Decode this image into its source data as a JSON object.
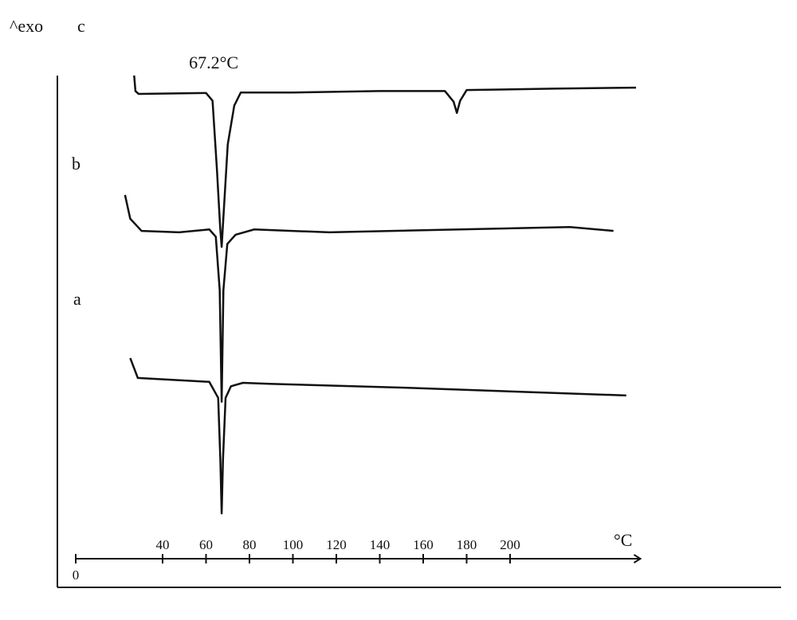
{
  "chart_data": {
    "type": "line",
    "title": "^exo",
    "annotation": "67.2°C",
    "annotation_x": 67.2,
    "x_label": "°C",
    "xlim": [
      0,
      260
    ],
    "ylim": [
      0,
      100
    ],
    "xticks": [
      0,
      40,
      60,
      80,
      100,
      120,
      140,
      160,
      180,
      200
    ],
    "grid": false,
    "series": [
      {
        "name": "a",
        "color": "#111111",
        "x": [
          25.1,
          28.6,
          61.5,
          65.6,
          66.6,
          67.2,
          67.8,
          69.0,
          71.5,
          77.0,
          89.1,
          151.4,
          253.5
        ],
        "values": [
          41,
          36.9,
          36.1,
          32.8,
          20,
          9.0,
          20,
          32.8,
          35.2,
          35.9,
          35.7,
          34.9,
          33.3
        ]
      },
      {
        "name": "b",
        "color": "#111111",
        "x": [
          22.7,
          25.1,
          30.3,
          47.6,
          61.5,
          64.5,
          66.3,
          67.2,
          68.0,
          69.8,
          73.6,
          82.2,
          116.8,
          227.5,
          247.6
        ],
        "values": [
          74.6,
          69.7,
          67.2,
          66.9,
          67.5,
          66.0,
          55,
          32,
          55,
          64.5,
          66.4,
          67.5,
          66.9,
          68,
          67.2
        ]
      },
      {
        "name": "c",
        "color": "#111111",
        "x": [
          26.9,
          27.5,
          29.0,
          60.0,
          63.0,
          65.0,
          66.5,
          67.2,
          68.0,
          70.0,
          73.0,
          76.0,
          100.0,
          140.0,
          170.0,
          174.0,
          175.5,
          177.0,
          180.0,
          220.0,
          258.0
        ],
        "values": [
          99.2,
          96,
          95.4,
          95.6,
          94,
          80,
          68,
          63.9,
          70,
          85,
          93,
          95.7,
          95.7,
          96,
          96,
          93.8,
          91.5,
          94,
          96.2,
          96.5,
          96.7
        ]
      }
    ]
  }
}
